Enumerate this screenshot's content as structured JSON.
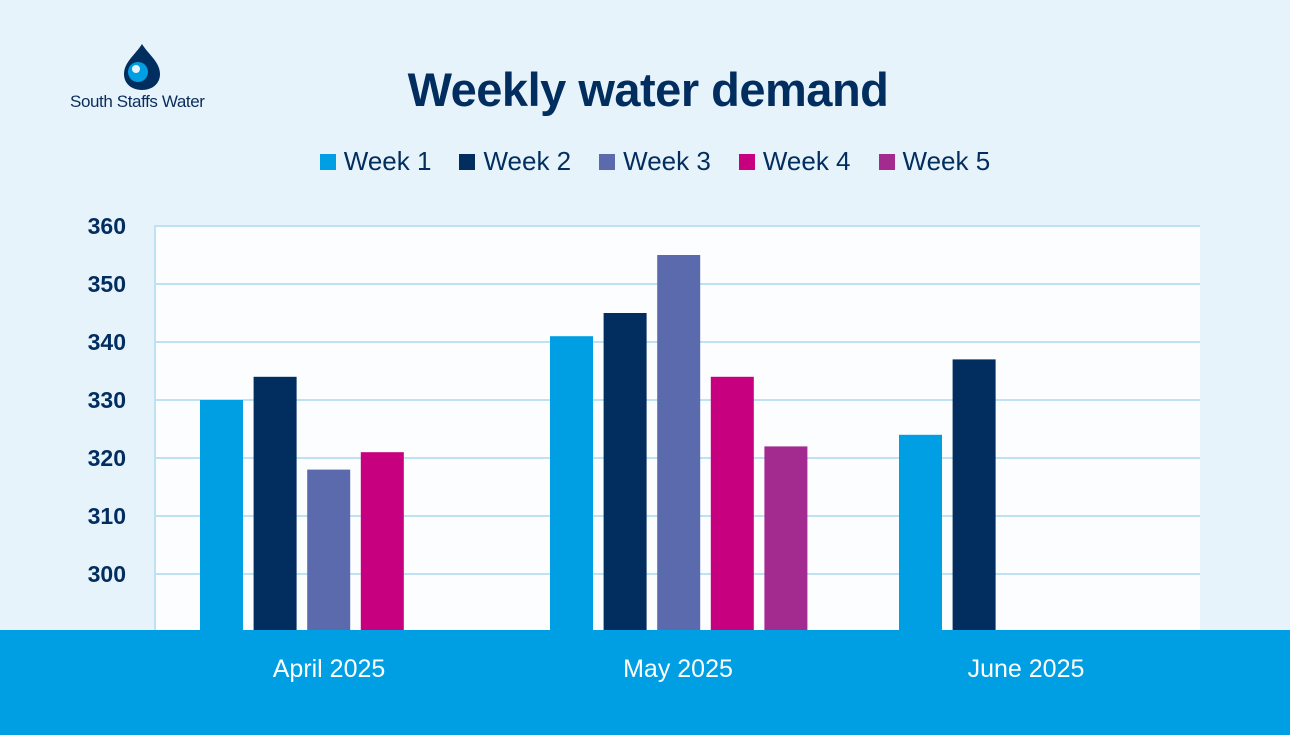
{
  "brand": {
    "name": "South Staffs Water"
  },
  "colors": {
    "background": "#e6f3fb",
    "plot_bg": "#fbfdff",
    "gridline": "#bfe2f2",
    "footer": "#009fe3",
    "title": "#022d5f"
  },
  "chart_data": {
    "type": "bar",
    "title": "Weekly water demand",
    "categories": [
      "April 2025",
      "May 2025",
      "June 2025"
    ],
    "series": [
      {
        "name": "Week 1",
        "color": "#009fe3",
        "values": [
          330,
          341,
          324
        ]
      },
      {
        "name": "Week 2",
        "color": "#022d5f",
        "values": [
          334,
          345,
          337
        ]
      },
      {
        "name": "Week 3",
        "color": "#5b6aad",
        "values": [
          318,
          355,
          null
        ]
      },
      {
        "name": "Week 4",
        "color": "#c6007e",
        "values": [
          321,
          334,
          null
        ]
      },
      {
        "name": "Week 5",
        "color": "#a32a8f",
        "values": [
          null,
          322,
          null
        ]
      }
    ],
    "yticks": [
      300,
      310,
      320,
      330,
      340,
      350,
      360
    ],
    "ylim": [
      290,
      360
    ],
    "xlabel": "",
    "ylabel": "",
    "grid": true,
    "legend": "top"
  }
}
